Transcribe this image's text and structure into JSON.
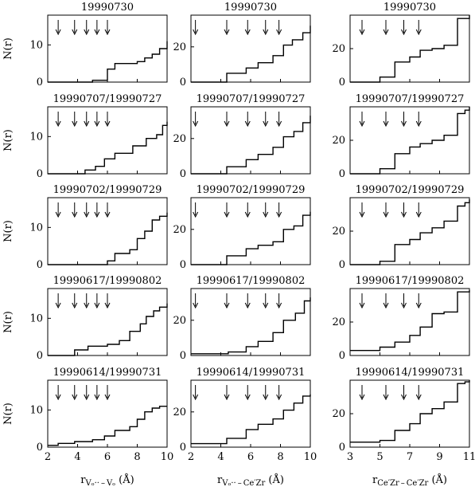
{
  "chart_data": {
    "type": "step",
    "layout": {
      "rows": 5,
      "cols": 3
    },
    "row_titles": [
      "19990730",
      "19990707/19990727",
      "19990702/19990729",
      "19990617/19990802",
      "19990614/19990731"
    ],
    "ylabel": "N(r)",
    "columns": [
      {
        "xlabel_main": "r",
        "xlabel_sub": "Vₒ·· – Vₒ",
        "xlabel_unit": "(Å)",
        "xlim": [
          2,
          10
        ],
        "xticks": [
          2,
          4,
          6,
          8,
          10
        ],
        "ylim": [
          0,
          18
        ],
        "yticks": [
          0,
          10
        ],
        "arrows_x": [
          2.7,
          3.8,
          4.6,
          5.3,
          6.0
        ]
      },
      {
        "xlabel_main": "r",
        "xlabel_sub": "Vₒ·· – Ce′Zr",
        "xlabel_unit": "(Å)",
        "xlim": [
          2,
          10
        ],
        "xticks": [
          2,
          4,
          6,
          8,
          10
        ],
        "ylim": [
          0,
          38
        ],
        "yticks": [
          0,
          20
        ],
        "arrows_x": [
          2.3,
          4.4,
          5.8,
          7.0,
          7.9
        ]
      },
      {
        "xlabel_main": "r",
        "xlabel_sub": "Ce′Zr – Ce′Zr",
        "xlabel_unit": "(Å)",
        "xlim": [
          3,
          11
        ],
        "xticks": [
          3,
          5,
          7,
          9,
          11
        ],
        "ylim": [
          0,
          40
        ],
        "yticks": [
          0,
          20
        ],
        "arrows_x": [
          3.8,
          5.4,
          6.6,
          7.6
        ]
      }
    ],
    "panels": [
      [
        {
          "x": [
            2.0,
            5.0,
            5.0,
            6.0,
            6.0,
            6.5,
            6.5,
            8.0,
            8.0,
            8.5,
            8.5,
            9.0,
            9.0,
            9.5,
            9.5,
            10.0
          ],
          "y": [
            0,
            0,
            0.5,
            0.5,
            3.5,
            3.5,
            5,
            5,
            5.5,
            5.5,
            6.5,
            6.5,
            7.5,
            7.5,
            9,
            9
          ],
          "end_y": 11
        },
        {
          "x": [
            2.0,
            4.4,
            4.4,
            5.7,
            5.7,
            6.5,
            6.5,
            7.5,
            7.5,
            8.2,
            8.2,
            8.8,
            8.8,
            9.5,
            9.5,
            10.0
          ],
          "y": [
            0,
            0,
            5,
            5,
            8,
            8,
            11,
            11,
            15,
            15,
            21,
            21,
            24,
            24,
            28,
            28
          ],
          "end_y": 32
        },
        {
          "x": [
            3.0,
            5.0,
            5.0,
            6.0,
            6.0,
            7.0,
            7.0,
            7.7,
            7.7,
            8.5,
            8.5,
            9.3,
            9.3,
            10.2,
            10.2,
            11.0
          ],
          "y": [
            0,
            0,
            3,
            3,
            12,
            12,
            15,
            15,
            19,
            19,
            20,
            20,
            22,
            22,
            38,
            38
          ],
          "end_y": 40
        }
      ],
      [
        {
          "x": [
            2.0,
            4.5,
            4.5,
            5.2,
            5.2,
            5.8,
            5.8,
            6.5,
            6.5,
            7.7,
            7.7,
            8.6,
            8.6,
            9.3,
            9.3,
            9.7,
            9.7,
            10.0
          ],
          "y": [
            0,
            0,
            1,
            1,
            2,
            2,
            4,
            4,
            5.5,
            5.5,
            7.5,
            7.5,
            9.5,
            9.5,
            10.5,
            10.5,
            13,
            13
          ],
          "end_y": 14
        },
        {
          "x": [
            2.0,
            4.4,
            4.4,
            5.7,
            5.7,
            6.5,
            6.5,
            7.5,
            7.5,
            8.2,
            8.2,
            8.9,
            8.9,
            9.5,
            9.5,
            10.0
          ],
          "y": [
            0,
            0,
            4,
            4,
            8,
            8,
            11,
            11,
            15,
            15,
            21,
            21,
            24,
            24,
            29,
            29
          ],
          "end_y": 33
        },
        {
          "x": [
            3.0,
            5.0,
            5.0,
            6.0,
            6.0,
            7.0,
            7.0,
            7.7,
            7.7,
            8.5,
            8.5,
            9.3,
            9.3,
            10.2,
            10.2,
            10.7,
            10.7,
            11.0
          ],
          "y": [
            0,
            0,
            3,
            3,
            12,
            12,
            16,
            16,
            18,
            18,
            20,
            20,
            23,
            23,
            36,
            36,
            38,
            38
          ],
          "end_y": 40
        }
      ],
      [
        {
          "x": [
            2.0,
            6.0,
            6.0,
            6.5,
            6.5,
            7.5,
            7.5,
            8.0,
            8.0,
            8.5,
            8.5,
            9.0,
            9.0,
            9.5,
            9.5,
            10.0
          ],
          "y": [
            0,
            0,
            1,
            1,
            3,
            3,
            4,
            4,
            7,
            7,
            9,
            9,
            12,
            12,
            13,
            13
          ],
          "end_y": 14
        },
        {
          "x": [
            2.0,
            4.4,
            4.4,
            5.7,
            5.7,
            6.5,
            6.5,
            7.5,
            7.5,
            8.2,
            8.2,
            8.9,
            8.9,
            9.5,
            9.5,
            10.0
          ],
          "y": [
            0,
            0,
            5,
            5,
            9,
            9,
            11,
            11,
            13,
            13,
            20,
            20,
            22,
            22,
            28,
            28
          ],
          "end_y": 30
        },
        {
          "x": [
            3.0,
            5.0,
            5.0,
            6.0,
            6.0,
            7.0,
            7.0,
            7.7,
            7.7,
            8.5,
            8.5,
            9.3,
            9.3,
            10.2,
            10.2,
            10.7,
            10.7,
            11.0
          ],
          "y": [
            0,
            0,
            2,
            2,
            12,
            12,
            15,
            15,
            19,
            19,
            22,
            22,
            26,
            26,
            35,
            35,
            37,
            37
          ],
          "end_y": 39
        }
      ],
      [
        {
          "x": [
            2.0,
            3.8,
            3.8,
            4.7,
            4.7,
            6.0,
            6.0,
            6.8,
            6.8,
            7.5,
            7.5,
            8.2,
            8.2,
            8.6,
            8.6,
            9.1,
            9.1,
            9.5,
            9.5,
            10.0
          ],
          "y": [
            0,
            0,
            1.5,
            1.5,
            2.5,
            2.5,
            3,
            3,
            4,
            4,
            6.5,
            6.5,
            8.5,
            8.5,
            10.5,
            10.5,
            12,
            12,
            13,
            13
          ],
          "end_y": 14
        },
        {
          "x": [
            2.0,
            4.5,
            4.5,
            5.7,
            5.7,
            6.5,
            6.5,
            7.5,
            7.5,
            8.2,
            8.2,
            9.0,
            9.0,
            9.6,
            9.6,
            10.0
          ],
          "y": [
            1,
            1,
            2,
            2,
            5,
            5,
            8,
            8,
            13,
            13,
            20,
            20,
            24,
            24,
            31,
            31
          ],
          "end_y": 33
        },
        {
          "x": [
            3.0,
            5.0,
            5.0,
            6.0,
            6.0,
            7.0,
            7.0,
            7.7,
            7.7,
            8.5,
            8.5,
            9.3,
            9.3,
            10.2,
            10.2,
            11.0
          ],
          "y": [
            3,
            3,
            5,
            5,
            8,
            8,
            12,
            12,
            17,
            17,
            25,
            25,
            26,
            26,
            38,
            38
          ],
          "end_y": 39
        }
      ],
      [
        {
          "x": [
            2.0,
            2.7,
            2.7,
            3.8,
            3.8,
            5.0,
            5.0,
            5.8,
            5.8,
            6.5,
            6.5,
            7.5,
            7.5,
            8.0,
            8.0,
            8.5,
            8.5,
            9.0,
            9.0,
            9.5,
            9.5,
            10.0
          ],
          "y": [
            0.5,
            0.5,
            1,
            1,
            1.5,
            1.5,
            2,
            2,
            3,
            3,
            4.5,
            4.5,
            5.5,
            5.5,
            7.5,
            7.5,
            9.5,
            9.5,
            10.5,
            10.5,
            11,
            11
          ],
          "end_y": 11
        },
        {
          "x": [
            2.0,
            4.4,
            4.4,
            5.7,
            5.7,
            6.5,
            6.5,
            7.5,
            7.5,
            8.2,
            8.2,
            8.9,
            8.9,
            9.5,
            9.5,
            10.0
          ],
          "y": [
            2,
            2,
            5,
            5,
            10,
            10,
            13,
            13,
            16,
            16,
            21,
            21,
            25,
            25,
            29,
            29
          ],
          "end_y": 30
        },
        {
          "x": [
            3.0,
            5.0,
            5.0,
            6.0,
            6.0,
            7.0,
            7.0,
            7.7,
            7.7,
            8.5,
            8.5,
            9.3,
            9.3,
            10.2,
            10.2,
            10.7,
            10.7,
            11.0
          ],
          "y": [
            3,
            3,
            4,
            4,
            10,
            10,
            14,
            14,
            20,
            20,
            23,
            23,
            27,
            27,
            38,
            38,
            39,
            39
          ],
          "end_y": 40
        }
      ]
    ]
  }
}
